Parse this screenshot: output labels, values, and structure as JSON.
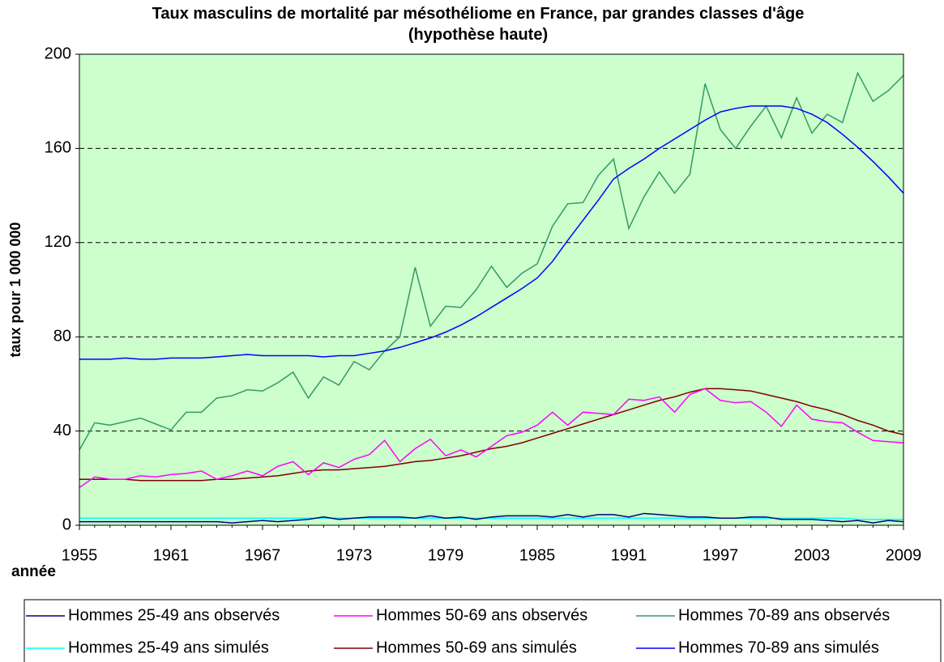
{
  "chart_data": {
    "type": "line",
    "title": "Taux masculins de mortalité par mésothéliome en France, par grandes classes d'âge (hypothèse haute)",
    "xlabel": "année",
    "ylabel": "taux pour 1 000 000",
    "x": [
      1955,
      1956,
      1957,
      1958,
      1959,
      1960,
      1961,
      1962,
      1963,
      1964,
      1965,
      1966,
      1967,
      1968,
      1969,
      1970,
      1971,
      1972,
      1973,
      1974,
      1975,
      1976,
      1977,
      1978,
      1979,
      1980,
      1981,
      1982,
      1983,
      1984,
      1985,
      1986,
      1987,
      1988,
      1989,
      1990,
      1991,
      1992,
      1993,
      1994,
      1995,
      1996,
      1997,
      1998,
      1999,
      2000,
      2001,
      2002,
      2003,
      2004,
      2005,
      2006,
      2007,
      2008,
      2009
    ],
    "xlim": [
      1955,
      2009
    ],
    "xticks": [
      1955,
      1961,
      1967,
      1973,
      1979,
      1985,
      1991,
      1997,
      2003,
      2009
    ],
    "ylim": [
      0,
      200
    ],
    "yticks": [
      0,
      40,
      80,
      120,
      160,
      200
    ],
    "grid": true,
    "background": "#ccffcc",
    "series": [
      {
        "name": "Hommes 25-49 ans observés",
        "color": "#000080",
        "values": [
          1.5,
          1.5,
          1.5,
          1.5,
          1.5,
          1.5,
          1.5,
          1.5,
          1.5,
          1.5,
          1,
          1.5,
          2,
          1.5,
          2,
          2.5,
          3.5,
          2.5,
          3,
          3.5,
          3.5,
          3.5,
          3,
          4,
          3,
          3.5,
          2.5,
          3.5,
          4,
          4,
          4,
          3.5,
          4.5,
          3.5,
          4.5,
          4.5,
          3.5,
          5,
          4.5,
          4,
          3.5,
          3.5,
          3,
          3,
          3.5,
          3.5,
          2.5,
          2.5,
          2.5,
          2,
          1.5,
          2,
          1,
          2,
          1.5
        ]
      },
      {
        "name": "Hommes 50-69 ans observés",
        "color": "#ff00ff",
        "values": [
          16,
          20.5,
          19.5,
          19.5,
          21,
          20.5,
          21.5,
          22,
          23,
          19.5,
          21,
          23,
          21,
          25,
          27,
          21.5,
          26.5,
          24.5,
          28,
          30,
          36,
          27,
          32.5,
          36.5,
          29.5,
          32,
          29,
          33.5,
          38,
          39.5,
          42.5,
          48,
          42.5,
          48,
          47.5,
          47,
          53.5,
          53,
          54.5,
          48,
          55.5,
          58,
          53,
          52,
          52.5,
          48,
          42,
          51,
          45,
          44,
          43.5,
          39.5,
          36,
          35.5,
          35
        ]
      },
      {
        "name": "Hommes 70-89 ans observés",
        "color": "#339966",
        "values": [
          32,
          43.5,
          42.5,
          44,
          45.5,
          43,
          40.5,
          48,
          48,
          54,
          55,
          57.5,
          57,
          60.5,
          65,
          54,
          63,
          59.5,
          69.5,
          66,
          74,
          80,
          109.5,
          84.5,
          93,
          92.5,
          100,
          110,
          101,
          107,
          111,
          127,
          136.5,
          137,
          148.5,
          155.5,
          126,
          139.5,
          150,
          141,
          149,
          187.5,
          168,
          160,
          169.5,
          178,
          164.5,
          181.5,
          166.5,
          174.5,
          171,
          192,
          180,
          184.5,
          191
        ]
      },
      {
        "name": "Hommes 25-49 ans simulés",
        "color": "#00ffff",
        "values": [
          3,
          3,
          3,
          3,
          3,
          3,
          3,
          3,
          3,
          3,
          3,
          3,
          3,
          3,
          3,
          3,
          3,
          3,
          3,
          3,
          3,
          3,
          3,
          3,
          3,
          3,
          3,
          3,
          3,
          3,
          3,
          3,
          3,
          3,
          3,
          3,
          3,
          3,
          3,
          3,
          3,
          3,
          3,
          3,
          3,
          3,
          3,
          3,
          3,
          3,
          3,
          2.5,
          2.5,
          2.5,
          2.5
        ]
      },
      {
        "name": "Hommes 50-69 ans simulés",
        "color": "#800000",
        "values": [
          19.5,
          19.5,
          19.5,
          19.5,
          19,
          19,
          19,
          19,
          19,
          19.5,
          19.5,
          20,
          20.5,
          21,
          22,
          23,
          23.5,
          23.5,
          24,
          24.5,
          25,
          26,
          27,
          27.5,
          28.5,
          29.5,
          31,
          32.5,
          33.5,
          35,
          37,
          39,
          41,
          43,
          45,
          47,
          49,
          51,
          53,
          54.5,
          56.5,
          58,
          58,
          57.5,
          57,
          55.5,
          54,
          52.5,
          50.5,
          49,
          47,
          44.5,
          42.5,
          40,
          38.5
        ]
      },
      {
        "name": "Hommes 70-89 ans simulés",
        "color": "#0000ff",
        "values": [
          70.5,
          70.5,
          70.5,
          71,
          70.5,
          70.5,
          71,
          71,
          71,
          71.5,
          72,
          72.5,
          72,
          72,
          72,
          72,
          71.5,
          72,
          72,
          73,
          74,
          75.5,
          77.5,
          79.5,
          82,
          85,
          88.5,
          92.5,
          96.5,
          100.5,
          105,
          112,
          121,
          129.5,
          138,
          147,
          151.5,
          155.5,
          160,
          164,
          168,
          172,
          175.5,
          177,
          178,
          178,
          178,
          177,
          174.5,
          171,
          166,
          160.5,
          154.5,
          148,
          141
        ]
      }
    ]
  }
}
